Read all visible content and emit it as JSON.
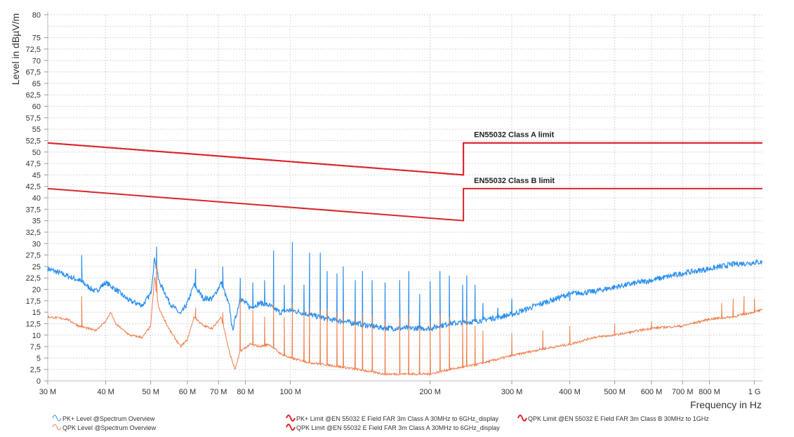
{
  "chart_data": {
    "type": "line",
    "xlabel": "Frequency in Hz",
    "ylabel": "Level in dBµV/m",
    "x_scale": "log",
    "x_unit": "MHz",
    "xlim": [
      30,
      1040
    ],
    "ylim": [
      0,
      80
    ],
    "grid": true,
    "legend_placement": "bottom",
    "y_ticks": [
      0,
      2.5,
      5,
      7.5,
      10,
      12.5,
      15,
      17.5,
      20,
      22.5,
      25,
      27.5,
      30,
      32.5,
      35,
      37.5,
      40,
      42.5,
      45,
      47.5,
      50,
      52.5,
      55,
      57.5,
      60,
      62.5,
      65,
      67.5,
      70,
      72.5,
      75,
      80
    ],
    "y_tick_labels": [
      "0",
      "2,5",
      "5",
      "7,5",
      "10",
      "12,5",
      "15",
      "17,5",
      "20",
      "22,5",
      "25",
      "27,5",
      "30",
      "32,5",
      "35",
      "37,5",
      "40",
      "42,5",
      "45",
      "47,5",
      "50",
      "52,5",
      "55",
      "57,5",
      "60",
      "62,5",
      "65",
      "67,5",
      "70",
      "72,5",
      "75",
      "80"
    ],
    "x_ticks": [
      30,
      40,
      50,
      60,
      70,
      80,
      100,
      200,
      300,
      400,
      500,
      600,
      700,
      800,
      1000
    ],
    "x_tick_labels": [
      "30 M",
      "40 M",
      "50 M",
      "60 M",
      "70 M",
      "80 M",
      "100 M",
      "200 M",
      "300 M",
      "400 M",
      "500 M",
      "600 M",
      "700 M",
      "800 M",
      "1 G"
    ],
    "annotations": [
      {
        "text": "EN55032 Class A limit",
        "x": 236,
        "y": 52
      },
      {
        "text": "EN55032 Class B limit",
        "x": 236,
        "y": 42
      }
    ],
    "series": [
      {
        "name": "PK+ Level @Spectrum Overview",
        "color": "#2b8ff0",
        "baseline": [
          [
            30,
            24.5
          ],
          [
            32,
            23.5
          ],
          [
            35,
            22
          ],
          [
            38,
            19.5
          ],
          [
            40,
            21.5
          ],
          [
            42,
            20
          ],
          [
            45,
            17.5
          ],
          [
            48,
            16.5
          ],
          [
            50,
            19
          ],
          [
            51,
            27
          ],
          [
            52,
            22
          ],
          [
            55,
            17
          ],
          [
            58,
            14.5
          ],
          [
            60,
            17
          ],
          [
            62,
            21
          ],
          [
            65,
            18
          ],
          [
            68,
            18
          ],
          [
            71,
            21.5
          ],
          [
            74,
            16
          ],
          [
            75,
            11
          ],
          [
            78,
            18
          ],
          [
            82,
            16
          ],
          [
            86,
            17
          ],
          [
            90,
            16.5
          ],
          [
            95,
            15
          ],
          [
            100,
            15.5
          ],
          [
            110,
            14.5
          ],
          [
            120,
            13.5
          ],
          [
            140,
            12.5
          ],
          [
            160,
            11.5
          ],
          [
            180,
            11.5
          ],
          [
            200,
            11.5
          ],
          [
            220,
            12.5
          ],
          [
            250,
            13
          ],
          [
            300,
            14.5
          ],
          [
            350,
            17
          ],
          [
            400,
            19
          ],
          [
            450,
            19.5
          ],
          [
            500,
            20.5
          ],
          [
            600,
            22
          ],
          [
            700,
            23.5
          ],
          [
            800,
            24.5
          ],
          [
            900,
            25.5
          ],
          [
            1040,
            26
          ]
        ],
        "spikes": [
          [
            35.5,
            27.5
          ],
          [
            51.5,
            29.3
          ],
          [
            62.5,
            24.5
          ],
          [
            71.5,
            25
          ],
          [
            78,
            22.5
          ],
          [
            83,
            21.5
          ],
          [
            88,
            22
          ],
          [
            92,
            28.5
          ],
          [
            97,
            21
          ],
          [
            101,
            30.3
          ],
          [
            107,
            21
          ],
          [
            110,
            28
          ],
          [
            116,
            28
          ],
          [
            120,
            24
          ],
          [
            126,
            23.5
          ],
          [
            130,
            25
          ],
          [
            138,
            22
          ],
          [
            143,
            24
          ],
          [
            150,
            22
          ],
          [
            160,
            21.5
          ],
          [
            172,
            22
          ],
          [
            180,
            24
          ],
          [
            190,
            19
          ],
          [
            200,
            21.8
          ],
          [
            210,
            24
          ],
          [
            220,
            23
          ],
          [
            235,
            21
          ],
          [
            240,
            23
          ],
          [
            250,
            21
          ],
          [
            260,
            17
          ],
          [
            280,
            16
          ],
          [
            300,
            18
          ],
          [
            400,
            17.5
          ],
          [
            850,
            24.5
          ]
        ]
      },
      {
        "name": "QPK Level @Spectrum Overview",
        "color": "#f07d4a",
        "baseline": [
          [
            30,
            14
          ],
          [
            33,
            13.5
          ],
          [
            35,
            12
          ],
          [
            38,
            11
          ],
          [
            40,
            13
          ],
          [
            41,
            15
          ],
          [
            42,
            12.5
          ],
          [
            45,
            10
          ],
          [
            48,
            9.5
          ],
          [
            50,
            12
          ],
          [
            51,
            23
          ],
          [
            52,
            16
          ],
          [
            55,
            11
          ],
          [
            58,
            7.5
          ],
          [
            60,
            9
          ],
          [
            62,
            14
          ],
          [
            65,
            12
          ],
          [
            68,
            11.5
          ],
          [
            71,
            14
          ],
          [
            74,
            6
          ],
          [
            76,
            2.5
          ],
          [
            78,
            6.5
          ],
          [
            82,
            8
          ],
          [
            86,
            7.5
          ],
          [
            90,
            8
          ],
          [
            95,
            6
          ],
          [
            100,
            5
          ],
          [
            110,
            4
          ],
          [
            120,
            3.5
          ],
          [
            140,
            2.5
          ],
          [
            160,
            1.5
          ],
          [
            180,
            1.5
          ],
          [
            200,
            1.5
          ],
          [
            220,
            2.5
          ],
          [
            250,
            3.5
          ],
          [
            300,
            5.5
          ],
          [
            350,
            7
          ],
          [
            400,
            8
          ],
          [
            450,
            9.5
          ],
          [
            500,
            10
          ],
          [
            600,
            11.5
          ],
          [
            700,
            12
          ],
          [
            800,
            13.5
          ],
          [
            900,
            14
          ],
          [
            1040,
            15.5
          ]
        ],
        "spikes": [
          [
            35.5,
            18.5
          ],
          [
            51.5,
            25.5
          ],
          [
            62.5,
            16
          ],
          [
            71.5,
            15
          ],
          [
            78,
            18
          ],
          [
            83,
            15.5
          ],
          [
            88,
            14
          ],
          [
            92,
            17
          ],
          [
            97,
            14
          ],
          [
            101,
            17
          ],
          [
            107,
            15
          ],
          [
            110,
            16
          ],
          [
            116,
            15.5
          ],
          [
            120,
            16
          ],
          [
            126,
            15
          ],
          [
            130,
            15
          ],
          [
            138,
            14
          ],
          [
            143,
            15
          ],
          [
            150,
            14.5
          ],
          [
            160,
            13.5
          ],
          [
            172,
            14
          ],
          [
            180,
            14.5
          ],
          [
            190,
            12
          ],
          [
            200,
            13
          ],
          [
            210,
            14.5
          ],
          [
            220,
            14
          ],
          [
            235,
            13
          ],
          [
            240,
            14
          ],
          [
            250,
            12
          ],
          [
            260,
            11
          ],
          [
            300,
            10.5
          ],
          [
            350,
            11
          ],
          [
            400,
            12
          ],
          [
            500,
            12.5
          ],
          [
            600,
            13
          ],
          [
            850,
            17
          ],
          [
            900,
            18
          ],
          [
            950,
            18.5
          ],
          [
            1000,
            18
          ]
        ]
      },
      {
        "name": "PK+ Limit @EN 55032 E Field FAR 3m Class A 30MHz to 6GHz_display",
        "color": "#d9262b",
        "points": [
          [
            30,
            52
          ],
          [
            236,
            45
          ],
          [
            236,
            52
          ],
          [
            1040,
            52
          ]
        ]
      },
      {
        "name": "QPK Limit @EN 55032 E Field FAR 3m Class B 30MHz to 1GHz",
        "color": "#d9262b",
        "points": [
          [
            30,
            42
          ],
          [
            236,
            35
          ],
          [
            236,
            42
          ],
          [
            1040,
            42
          ]
        ]
      },
      {
        "name": "QPK Limit @EN 55032 E Field FAR 3m Class A 30MHz to 6GHz_display",
        "color": "#d9262b",
        "points": [
          [
            30,
            52
          ],
          [
            236,
            45
          ],
          [
            236,
            52
          ],
          [
            1040,
            52
          ]
        ]
      }
    ]
  }
}
